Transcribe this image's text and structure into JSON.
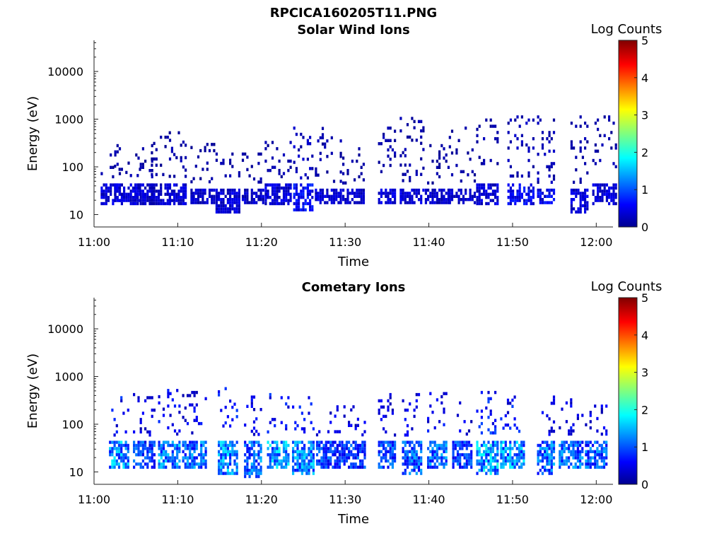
{
  "figure": {
    "title": "RPCICA160205T11.PNG"
  },
  "colorbar_label": "Log Counts",
  "chart_data": [
    {
      "type": "heatmap",
      "title": "Solar Wind Ions",
      "xlabel": "Time",
      "ylabel": "Energy (eV)",
      "x_range": [
        "11:00",
        "12:02"
      ],
      "x_ticks": [
        "11:00",
        "11:10",
        "11:20",
        "11:30",
        "11:40",
        "11:50",
        "12:00"
      ],
      "y_scale": "log",
      "y_range": [
        5.5,
        45000
      ],
      "y_ticks": [
        "10",
        "100",
        "1000",
        "10000"
      ],
      "colorbar": {
        "label": "Log Counts",
        "range": [
          0,
          5
        ],
        "ticks": [
          "0",
          "1",
          "2",
          "3",
          "4",
          "5"
        ],
        "colormap": "jet"
      },
      "grid": false,
      "seed": 7,
      "bursts": [
        {
          "t": "11:02",
          "e_lo": 18,
          "e_hi": 45,
          "max": 0.6,
          "high_max": 300
        },
        {
          "t": "11:04",
          "e_lo": 18,
          "e_hi": 45,
          "max": 0.6,
          "high_max": 150
        },
        {
          "t": "11:06",
          "e_lo": 18,
          "e_hi": 45,
          "max": 0.6,
          "high_max": 300
        },
        {
          "t": "11:08",
          "e_lo": 18,
          "e_hi": 45,
          "max": 0.5,
          "high_max": 450
        },
        {
          "t": "11:10",
          "e_lo": 18,
          "e_hi": 45,
          "max": 0.6,
          "high_max": 650
        },
        {
          "t": "11:13",
          "e_lo": 18,
          "e_hi": 35,
          "max": 0.5,
          "high_max": 500
        },
        {
          "t": "11:16",
          "e_lo": 12,
          "e_hi": 35,
          "max": 0.6,
          "high_max": 200
        },
        {
          "t": "11:19",
          "e_lo": 18,
          "e_hi": 35,
          "max": 0.5,
          "high_max": 200
        },
        {
          "t": "11:22",
          "e_lo": 18,
          "e_hi": 45,
          "max": 0.6,
          "high_max": 350
        },
        {
          "t": "11:25",
          "e_lo": 12,
          "e_hi": 45,
          "max": 0.9,
          "high_max": 700
        },
        {
          "t": "11:28",
          "e_lo": 18,
          "e_hi": 35,
          "max": 0.6,
          "high_max": 800
        },
        {
          "t": "11:31",
          "e_lo": 18,
          "e_hi": 35,
          "max": 0.5,
          "high_max": 300
        },
        {
          "t": "11:35",
          "e_lo": 18,
          "e_hi": 35,
          "max": 0.6,
          "high_max": 700
        },
        {
          "t": "11:38",
          "e_lo": 18,
          "e_hi": 35,
          "max": 0.6,
          "high_max": 1300
        },
        {
          "t": "11:41",
          "e_lo": 18,
          "e_hi": 35,
          "max": 0.5,
          "high_max": 300
        },
        {
          "t": "11:44",
          "e_lo": 18,
          "e_hi": 35,
          "max": 0.5,
          "high_max": 700
        },
        {
          "t": "11:47",
          "e_lo": 18,
          "e_hi": 45,
          "max": 0.6,
          "high_max": 1200
        },
        {
          "t": "11:51",
          "e_lo": 18,
          "e_hi": 45,
          "max": 0.8,
          "high_max": 1200
        },
        {
          "t": "11:54",
          "e_lo": 18,
          "e_hi": 35,
          "max": 0.8,
          "high_max": 1200
        },
        {
          "t": "11:58",
          "e_lo": 12,
          "e_hi": 35,
          "max": 0.6,
          "high_max": 1200
        },
        {
          "t": "12:01",
          "e_lo": 18,
          "e_hi": 45,
          "max": 0.6,
          "high_max": 1200
        }
      ]
    },
    {
      "type": "heatmap",
      "title": "Cometary Ions",
      "xlabel": "Time",
      "ylabel": "Energy (eV)",
      "x_range": [
        "11:00",
        "12:02"
      ],
      "x_ticks": [
        "11:00",
        "11:10",
        "11:20",
        "11:30",
        "11:40",
        "11:50",
        "12:00"
      ],
      "y_scale": "log",
      "y_range": [
        5.5,
        45000
      ],
      "y_ticks": [
        "10",
        "100",
        "1000",
        "10000"
      ],
      "colorbar": {
        "label": "Log Counts",
        "range": [
          0,
          5
        ],
        "ticks": [
          "0",
          "1",
          "2",
          "3",
          "4",
          "5"
        ],
        "colormap": "jet"
      },
      "grid": false,
      "seed": 31,
      "bursts": [
        {
          "t": "11:03",
          "e_lo": 12,
          "e_hi": 45,
          "max": 1.9,
          "high_max": 450
        },
        {
          "t": "11:06",
          "e_lo": 12,
          "e_hi": 45,
          "max": 1.3,
          "high_max": 450
        },
        {
          "t": "11:09",
          "e_lo": 12,
          "e_hi": 45,
          "max": 1.8,
          "high_max": 550
        },
        {
          "t": "11:12",
          "e_lo": 12,
          "e_hi": 45,
          "max": 1.6,
          "high_max": 500
        },
        {
          "t": "11:16",
          "e_lo": 10,
          "e_hi": 45,
          "max": 1.9,
          "high_max": 600
        },
        {
          "t": "11:19",
          "e_lo": 8,
          "e_hi": 45,
          "max": 1.6,
          "high_max": 400
        },
        {
          "t": "11:22",
          "e_lo": 12,
          "e_hi": 45,
          "max": 2.0,
          "high_max": 450
        },
        {
          "t": "11:25",
          "e_lo": 10,
          "e_hi": 45,
          "max": 1.9,
          "high_max": 450
        },
        {
          "t": "11:28",
          "e_lo": 12,
          "e_hi": 45,
          "max": 1.3,
          "high_max": 250
        },
        {
          "t": "11:31",
          "e_lo": 12,
          "e_hi": 45,
          "max": 1.3,
          "high_max": 250
        },
        {
          "t": "11:35",
          "e_lo": 12,
          "e_hi": 45,
          "max": 1.4,
          "high_max": 450
        },
        {
          "t": "11:38",
          "e_lo": 10,
          "e_hi": 45,
          "max": 1.5,
          "high_max": 450
        },
        {
          "t": "11:41",
          "e_lo": 12,
          "e_hi": 45,
          "max": 1.6,
          "high_max": 550
        },
        {
          "t": "11:44",
          "e_lo": 12,
          "e_hi": 45,
          "max": 1.3,
          "high_max": 350
        },
        {
          "t": "11:47",
          "e_lo": 10,
          "e_hi": 45,
          "max": 2.1,
          "high_max": 500
        },
        {
          "t": "11:50",
          "e_lo": 12,
          "e_hi": 45,
          "max": 1.9,
          "high_max": 400
        },
        {
          "t": "11:54",
          "e_lo": 10,
          "e_hi": 45,
          "max": 1.6,
          "high_max": 400
        },
        {
          "t": "11:57",
          "e_lo": 12,
          "e_hi": 45,
          "max": 1.6,
          "high_max": 350
        },
        {
          "t": "12:00",
          "e_lo": 12,
          "e_hi": 45,
          "max": 1.5,
          "high_max": 300
        }
      ]
    }
  ]
}
